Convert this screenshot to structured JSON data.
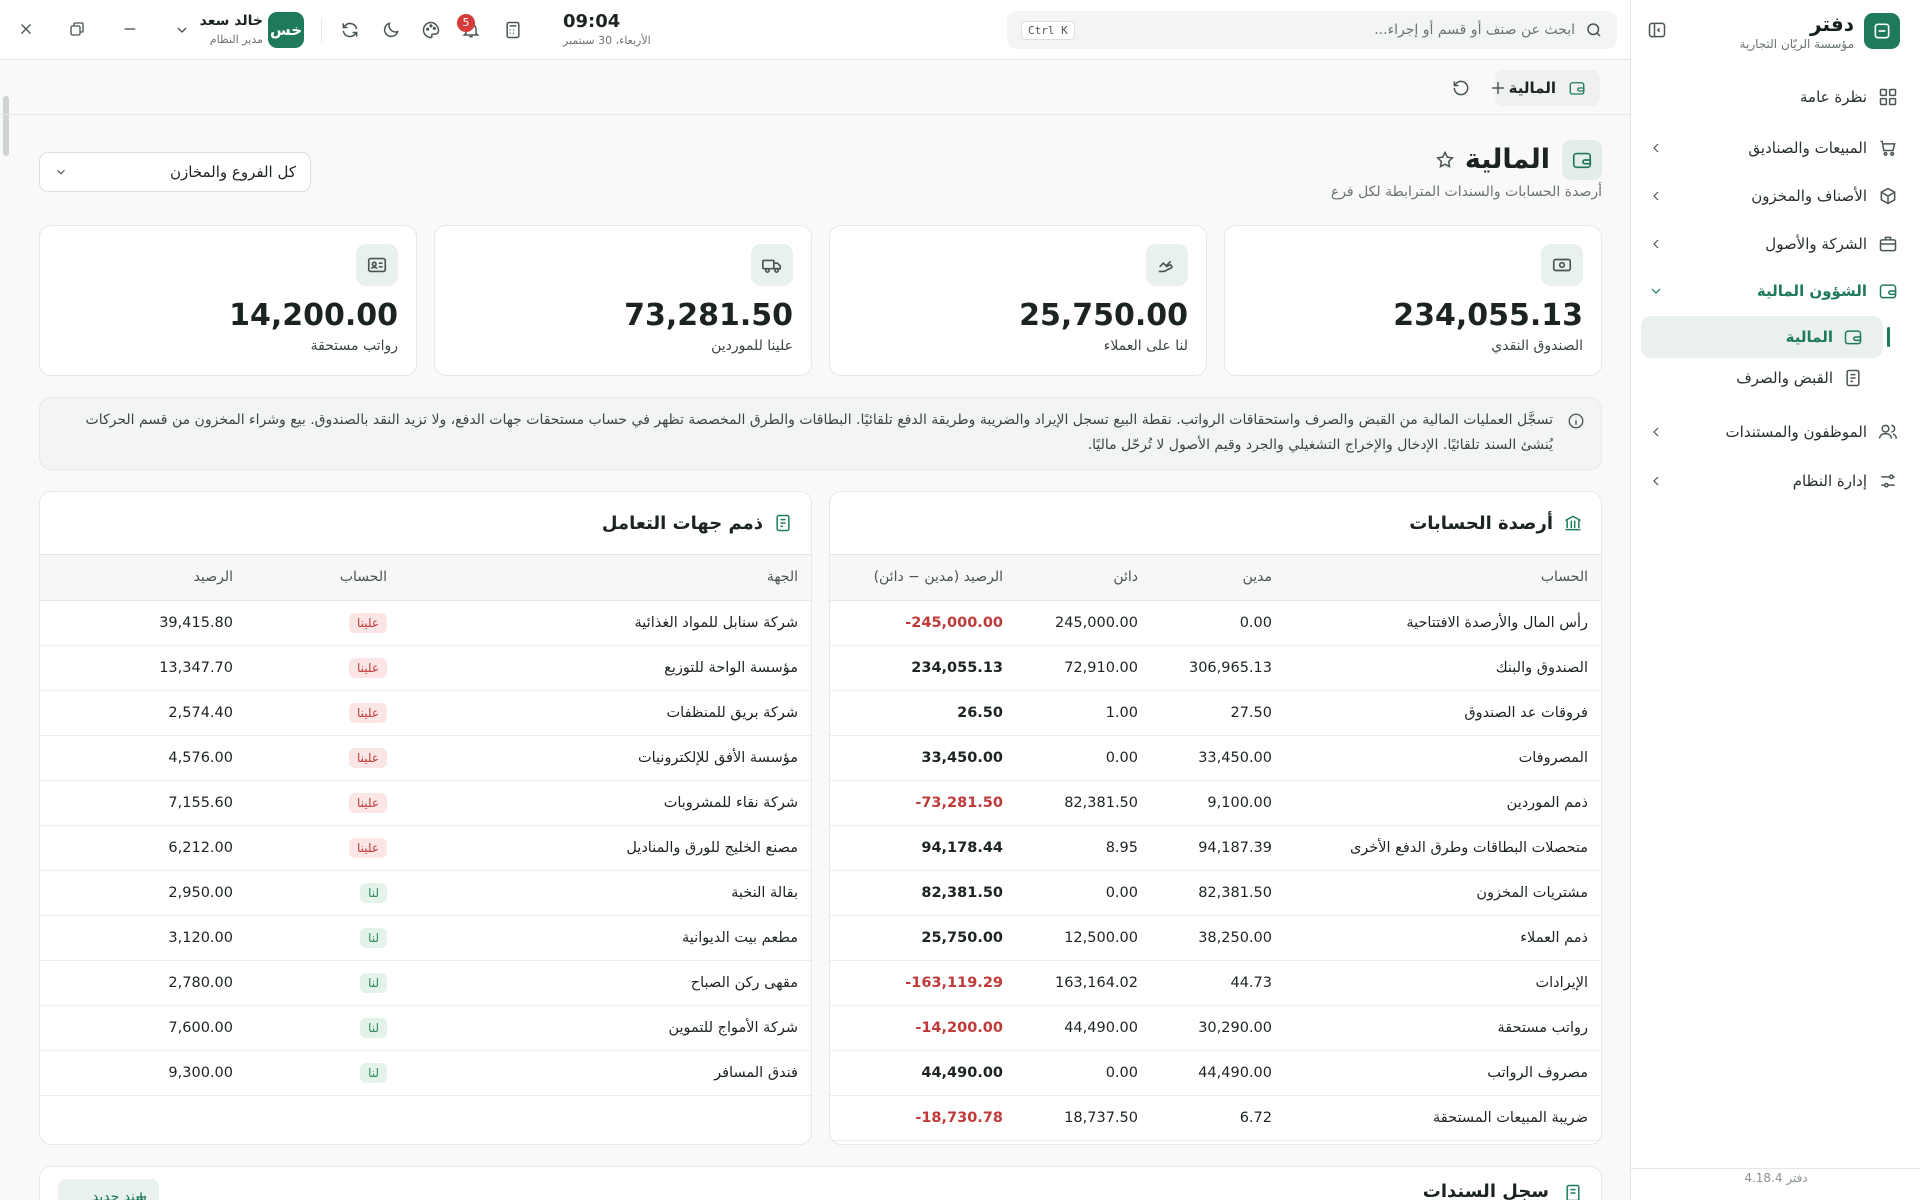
{
  "sidebar": {
    "brand": "دفتر",
    "org": "مؤسسة الريّان التجارية",
    "nav": [
      {
        "label": "نظرة عامة"
      },
      {
        "label": "المبيعات والصناديق"
      },
      {
        "label": "الأصناف والمخزون"
      },
      {
        "label": "الشركة والأصول"
      },
      {
        "label": "الشؤون المالية",
        "children": [
          {
            "label": "المالية",
            "active": true
          },
          {
            "label": "القبض والصرف"
          }
        ]
      },
      {
        "label": "الموظفون والمستندات"
      },
      {
        "label": "إدارة النظام"
      }
    ],
    "version": "دفتر 4.18.4"
  },
  "topbar": {
    "search_placeholder": "ابحث عن صنف أو قسم أو إجراء...",
    "shortcut": "Ctrl K",
    "time": "09:04",
    "date": "الأربعاء، 30 سبتمبر",
    "notifications": 5,
    "user": {
      "initials": "خس",
      "name": "خالد سعد",
      "role": "مدير النظام"
    }
  },
  "tabs": [
    {
      "label": "المالية"
    }
  ],
  "page": {
    "title": "المالية",
    "subtitle": "أرصدة الحسابات والسندات المترابطة لكل فرع",
    "branch_filter": "كل الفروع والمخازن"
  },
  "kpis": [
    {
      "value": "234,055.13",
      "label": "الصندوق النقدي"
    },
    {
      "value": "25,750.00",
      "label": "لنا على العملاء"
    },
    {
      "value": "73,281.50",
      "label": "علينا للموردين"
    },
    {
      "value": "14,200.00",
      "label": "رواتب مستحقة"
    }
  ],
  "notice": "تسجَّل العمليات المالية من القبض والصرف واستحقاقات الرواتب. نقطة البيع تسجل الإيراد والضريبة وطريقة الدفع تلقائيًا. البطاقات والطرق المخصصة تظهر في حساب مستحقات جهات الدفع، ولا تزيد النقد بالصندوق. بيع وشراء المخزون من قسم الحركات يُنشئ السند تلقائيًا. الإدخال والإخراج التشغيلي والجرد وقيم الأصول لا تُرحّل ماليًا.",
  "accounts": {
    "title": "أرصدة الحسابات",
    "columns": [
      "الحساب",
      "مدين",
      "دائن",
      "الرصيد (مدين − دائن)"
    ],
    "rows": [
      [
        "رأس المال والأرصدة الافتتاحية",
        "0.00",
        "245,000.00",
        "-245,000.00"
      ],
      [
        "الصندوق والبنك",
        "306,965.13",
        "72,910.00",
        "234,055.13"
      ],
      [
        "فروقات عد الصندوق",
        "27.50",
        "1.00",
        "26.50"
      ],
      [
        "المصروفات",
        "33,450.00",
        "0.00",
        "33,450.00"
      ],
      [
        "ذمم الموردين",
        "9,100.00",
        "82,381.50",
        "-73,281.50"
      ],
      [
        "متحصلات البطاقات وطرق الدفع الأخرى",
        "94,187.39",
        "8.95",
        "94,178.44"
      ],
      [
        "مشتريات المخزون",
        "82,381.50",
        "0.00",
        "82,381.50"
      ],
      [
        "ذمم العملاء",
        "38,250.00",
        "12,500.00",
        "25,750.00"
      ],
      [
        "الإيرادات",
        "44.73",
        "163,164.02",
        "-163,119.29"
      ],
      [
        "رواتب مستحقة",
        "30,290.00",
        "44,490.00",
        "-14,200.00"
      ],
      [
        "مصروف الرواتب",
        "44,490.00",
        "0.00",
        "44,490.00"
      ],
      [
        "ضريبة المبيعات المستحقة",
        "6.72",
        "18,737.50",
        "-18,730.78"
      ]
    ]
  },
  "parties": {
    "title": "ذمم جهات التعامل",
    "columns": [
      "الجهة",
      "الحساب",
      "الرصيد"
    ],
    "rows": [
      [
        "شركة سنابل للمواد الغذائية",
        "علينا",
        "39,415.80"
      ],
      [
        "مؤسسة الواحة للتوزيع",
        "علينا",
        "13,347.70"
      ],
      [
        "شركة بريق للمنظفات",
        "علينا",
        "2,574.40"
      ],
      [
        "مؤسسة الأفق للإلكترونيات",
        "علينا",
        "4,576.00"
      ],
      [
        "شركة نقاء للمشروبات",
        "علينا",
        "7,155.60"
      ],
      [
        "مصنع الخليج للورق والمناديل",
        "علينا",
        "6,212.00"
      ],
      [
        "بقالة النخبة",
        "لنا",
        "2,950.00"
      ],
      [
        "مطعم بيت الديوانية",
        "لنا",
        "3,120.00"
      ],
      [
        "مقهى ركن الصباح",
        "لنا",
        "2,780.00"
      ],
      [
        "شركة الأمواج للتموين",
        "لنا",
        "7,600.00"
      ],
      [
        "فندق المسافر",
        "لنا",
        "9,300.00"
      ]
    ]
  },
  "vouchers": {
    "title": "سجل السندات",
    "new_button": "سند جديد"
  }
}
